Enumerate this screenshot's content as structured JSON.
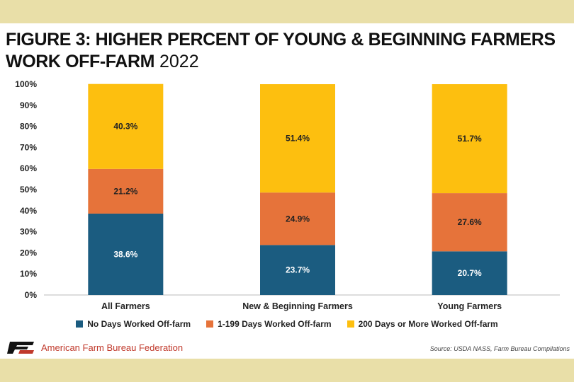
{
  "title": {
    "bold": "FIGURE 3: HIGHER PERCENT OF YOUNG & BEGINNING FARMERS WORK OFF-FARM",
    "year": "2022"
  },
  "footer": {
    "org": "American Farm Bureau Federation",
    "source": "Source: USDA NASS, Farm Bureau Compilations"
  },
  "colors": {
    "no_days": "#1b5c80",
    "some_days": "#e6733a",
    "many_days": "#fdbf0f"
  },
  "chart_data": {
    "type": "bar",
    "stacked": true,
    "categories": [
      "All Farmers",
      "New & Beginning Farmers",
      "Young Farmers"
    ],
    "series": [
      {
        "name": "No Days Worked Off-farm",
        "values": [
          38.6,
          23.7,
          20.7
        ],
        "labels": [
          "38.6%",
          "23.7%",
          "20.7%"
        ],
        "color": "#1b5c80"
      },
      {
        "name": "1-199 Days Worked Off-farm",
        "values": [
          21.2,
          24.9,
          27.6
        ],
        "labels": [
          "21.2%",
          "24.9%",
          "27.6%"
        ],
        "color": "#e6733a"
      },
      {
        "name": "200 Days or More Worked Off-farm",
        "values": [
          40.3,
          51.4,
          51.7
        ],
        "labels": [
          "40.3%",
          "51.4%",
          "51.7%"
        ],
        "color": "#fdbf0f"
      }
    ],
    "ylim": [
      0,
      100
    ],
    "yticks": [
      "0%",
      "10%",
      "20%",
      "30%",
      "40%",
      "50%",
      "60%",
      "70%",
      "80%",
      "90%",
      "100%"
    ],
    "grid": false,
    "legend_position": "bottom"
  }
}
